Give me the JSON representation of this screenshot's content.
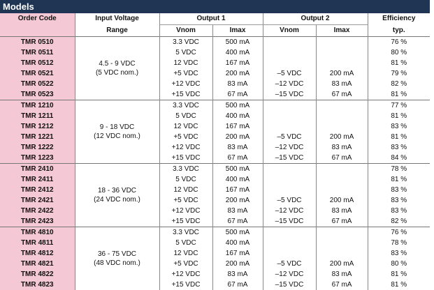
{
  "header": {
    "title": "Models"
  },
  "columns": {
    "order_code": "Order Code",
    "input_voltage": "Input Voltage",
    "range": "Range",
    "output1": "Output 1",
    "output2": "Output 2",
    "vnom1": "Vnom",
    "imax1": "Imax",
    "vnom2": "Vnom",
    "imax2": "Imax",
    "efficiency": "Efficiency",
    "typ": "typ."
  },
  "groups": [
    {
      "range": "4.5 - 9 VDC",
      "nom": "(5 VDC nom.)",
      "rows": [
        {
          "code": "TMR 0510",
          "vnom1": "3.3 VDC",
          "imax1": "500 mA",
          "efficiency": "76 %"
        },
        {
          "code": "TMR 0511",
          "vnom1": "5 VDC",
          "imax1": "400 mA",
          "efficiency": "80 %"
        },
        {
          "code": "TMR 0512",
          "vnom1": "12 VDC",
          "imax1": "167 mA",
          "efficiency": "81 %"
        },
        {
          "code": "TMR 0521",
          "vnom1": "+5 VDC",
          "imax1": "200 mA",
          "vnom2": "–5 VDC",
          "imax2": "200 mA",
          "efficiency": "79 %"
        },
        {
          "code": "TMR 0522",
          "vnom1": "+12 VDC",
          "imax1": "83 mA",
          "vnom2": "–12 VDC",
          "imax2": "83 mA",
          "efficiency": "82 %"
        },
        {
          "code": "TMR 0523",
          "vnom1": "+15 VDC",
          "imax1": "67 mA",
          "vnom2": "–15 VDC",
          "imax2": "67 mA",
          "efficiency": "81 %"
        }
      ]
    },
    {
      "range": "9 - 18 VDC",
      "nom": "(12 VDC nom.)",
      "rows": [
        {
          "code": "TMR 1210",
          "vnom1": "3.3 VDC",
          "imax1": "500 mA",
          "efficiency": "77 %"
        },
        {
          "code": "TMR 1211",
          "vnom1": "5 VDC",
          "imax1": "400 mA",
          "efficiency": "81 %"
        },
        {
          "code": "TMR 1212",
          "vnom1": "12 VDC",
          "imax1": "167 mA",
          "efficiency": "83 %"
        },
        {
          "code": "TMR 1221",
          "vnom1": "+5 VDC",
          "imax1": "200 mA",
          "vnom2": "–5 VDC",
          "imax2": "200 mA",
          "efficiency": "81 %"
        },
        {
          "code": "TMR 1222",
          "vnom1": "+12 VDC",
          "imax1": "83 mA",
          "vnom2": "–12 VDC",
          "imax2": "83 mA",
          "efficiency": "83 %"
        },
        {
          "code": "TMR 1223",
          "vnom1": "+15 VDC",
          "imax1": "67 mA",
          "vnom2": "–15 VDC",
          "imax2": "67 mA",
          "efficiency": "84 %"
        }
      ]
    },
    {
      "range": "18 - 36 VDC",
      "nom": "(24 VDC nom.)",
      "rows": [
        {
          "code": "TMR 2410",
          "vnom1": "3.3 VDC",
          "imax1": "500 mA",
          "efficiency": "78 %"
        },
        {
          "code": "TMR 2411",
          "vnom1": "5 VDC",
          "imax1": "400 mA",
          "efficiency": "81 %"
        },
        {
          "code": "TMR 2412",
          "vnom1": "12 VDC",
          "imax1": "167 mA",
          "efficiency": "83 %"
        },
        {
          "code": "TMR 2421",
          "vnom1": "+5 VDC",
          "imax1": "200 mA",
          "vnom2": "–5 VDC",
          "imax2": "200 mA",
          "efficiency": "83 %"
        },
        {
          "code": "TMR 2422",
          "vnom1": "+12 VDC",
          "imax1": "83 mA",
          "vnom2": "–12 VDC",
          "imax2": "83 mA",
          "efficiency": "83 %"
        },
        {
          "code": "TMR 2423",
          "vnom1": "+15 VDC",
          "imax1": "67 mA",
          "vnom2": "–15 VDC",
          "imax2": "67 mA",
          "efficiency": "82 %"
        }
      ]
    },
    {
      "range": "36 - 75 VDC",
      "nom": "(48 VDC nom.)",
      "rows": [
        {
          "code": "TMR 4810",
          "vnom1": "3.3 VDC",
          "imax1": "500 mA",
          "efficiency": "76 %"
        },
        {
          "code": "TMR 4811",
          "vnom1": "5 VDC",
          "imax1": "400 mA",
          "efficiency": "78 %"
        },
        {
          "code": "TMR 4812",
          "vnom1": "12 VDC",
          "imax1": "167 mA",
          "efficiency": "83 %"
        },
        {
          "code": "TMR 4821",
          "vnom1": "+5 VDC",
          "imax1": "200 mA",
          "vnom2": "–5 VDC",
          "imax2": "200 mA",
          "efficiency": "80 %"
        },
        {
          "code": "TMR 4822",
          "vnom1": "+12 VDC",
          "imax1": "83 mA",
          "vnom2": "–12 VDC",
          "imax2": "83 mA",
          "efficiency": "81 %"
        },
        {
          "code": "TMR 4823",
          "vnom1": "+15 VDC",
          "imax1": "67 mA",
          "vnom2": "–15 VDC",
          "imax2": "67 mA",
          "efficiency": "81 %"
        }
      ]
    }
  ]
}
